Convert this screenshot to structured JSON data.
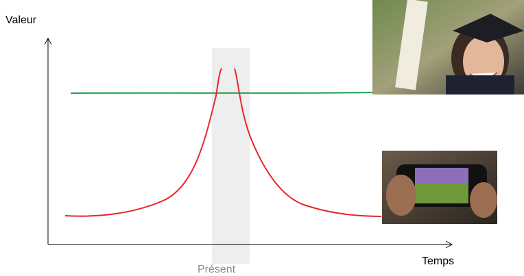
{
  "axes": {
    "y_label": "Valeur",
    "x_label": "Temps"
  },
  "highlight": {
    "label": "Présent"
  }
}
